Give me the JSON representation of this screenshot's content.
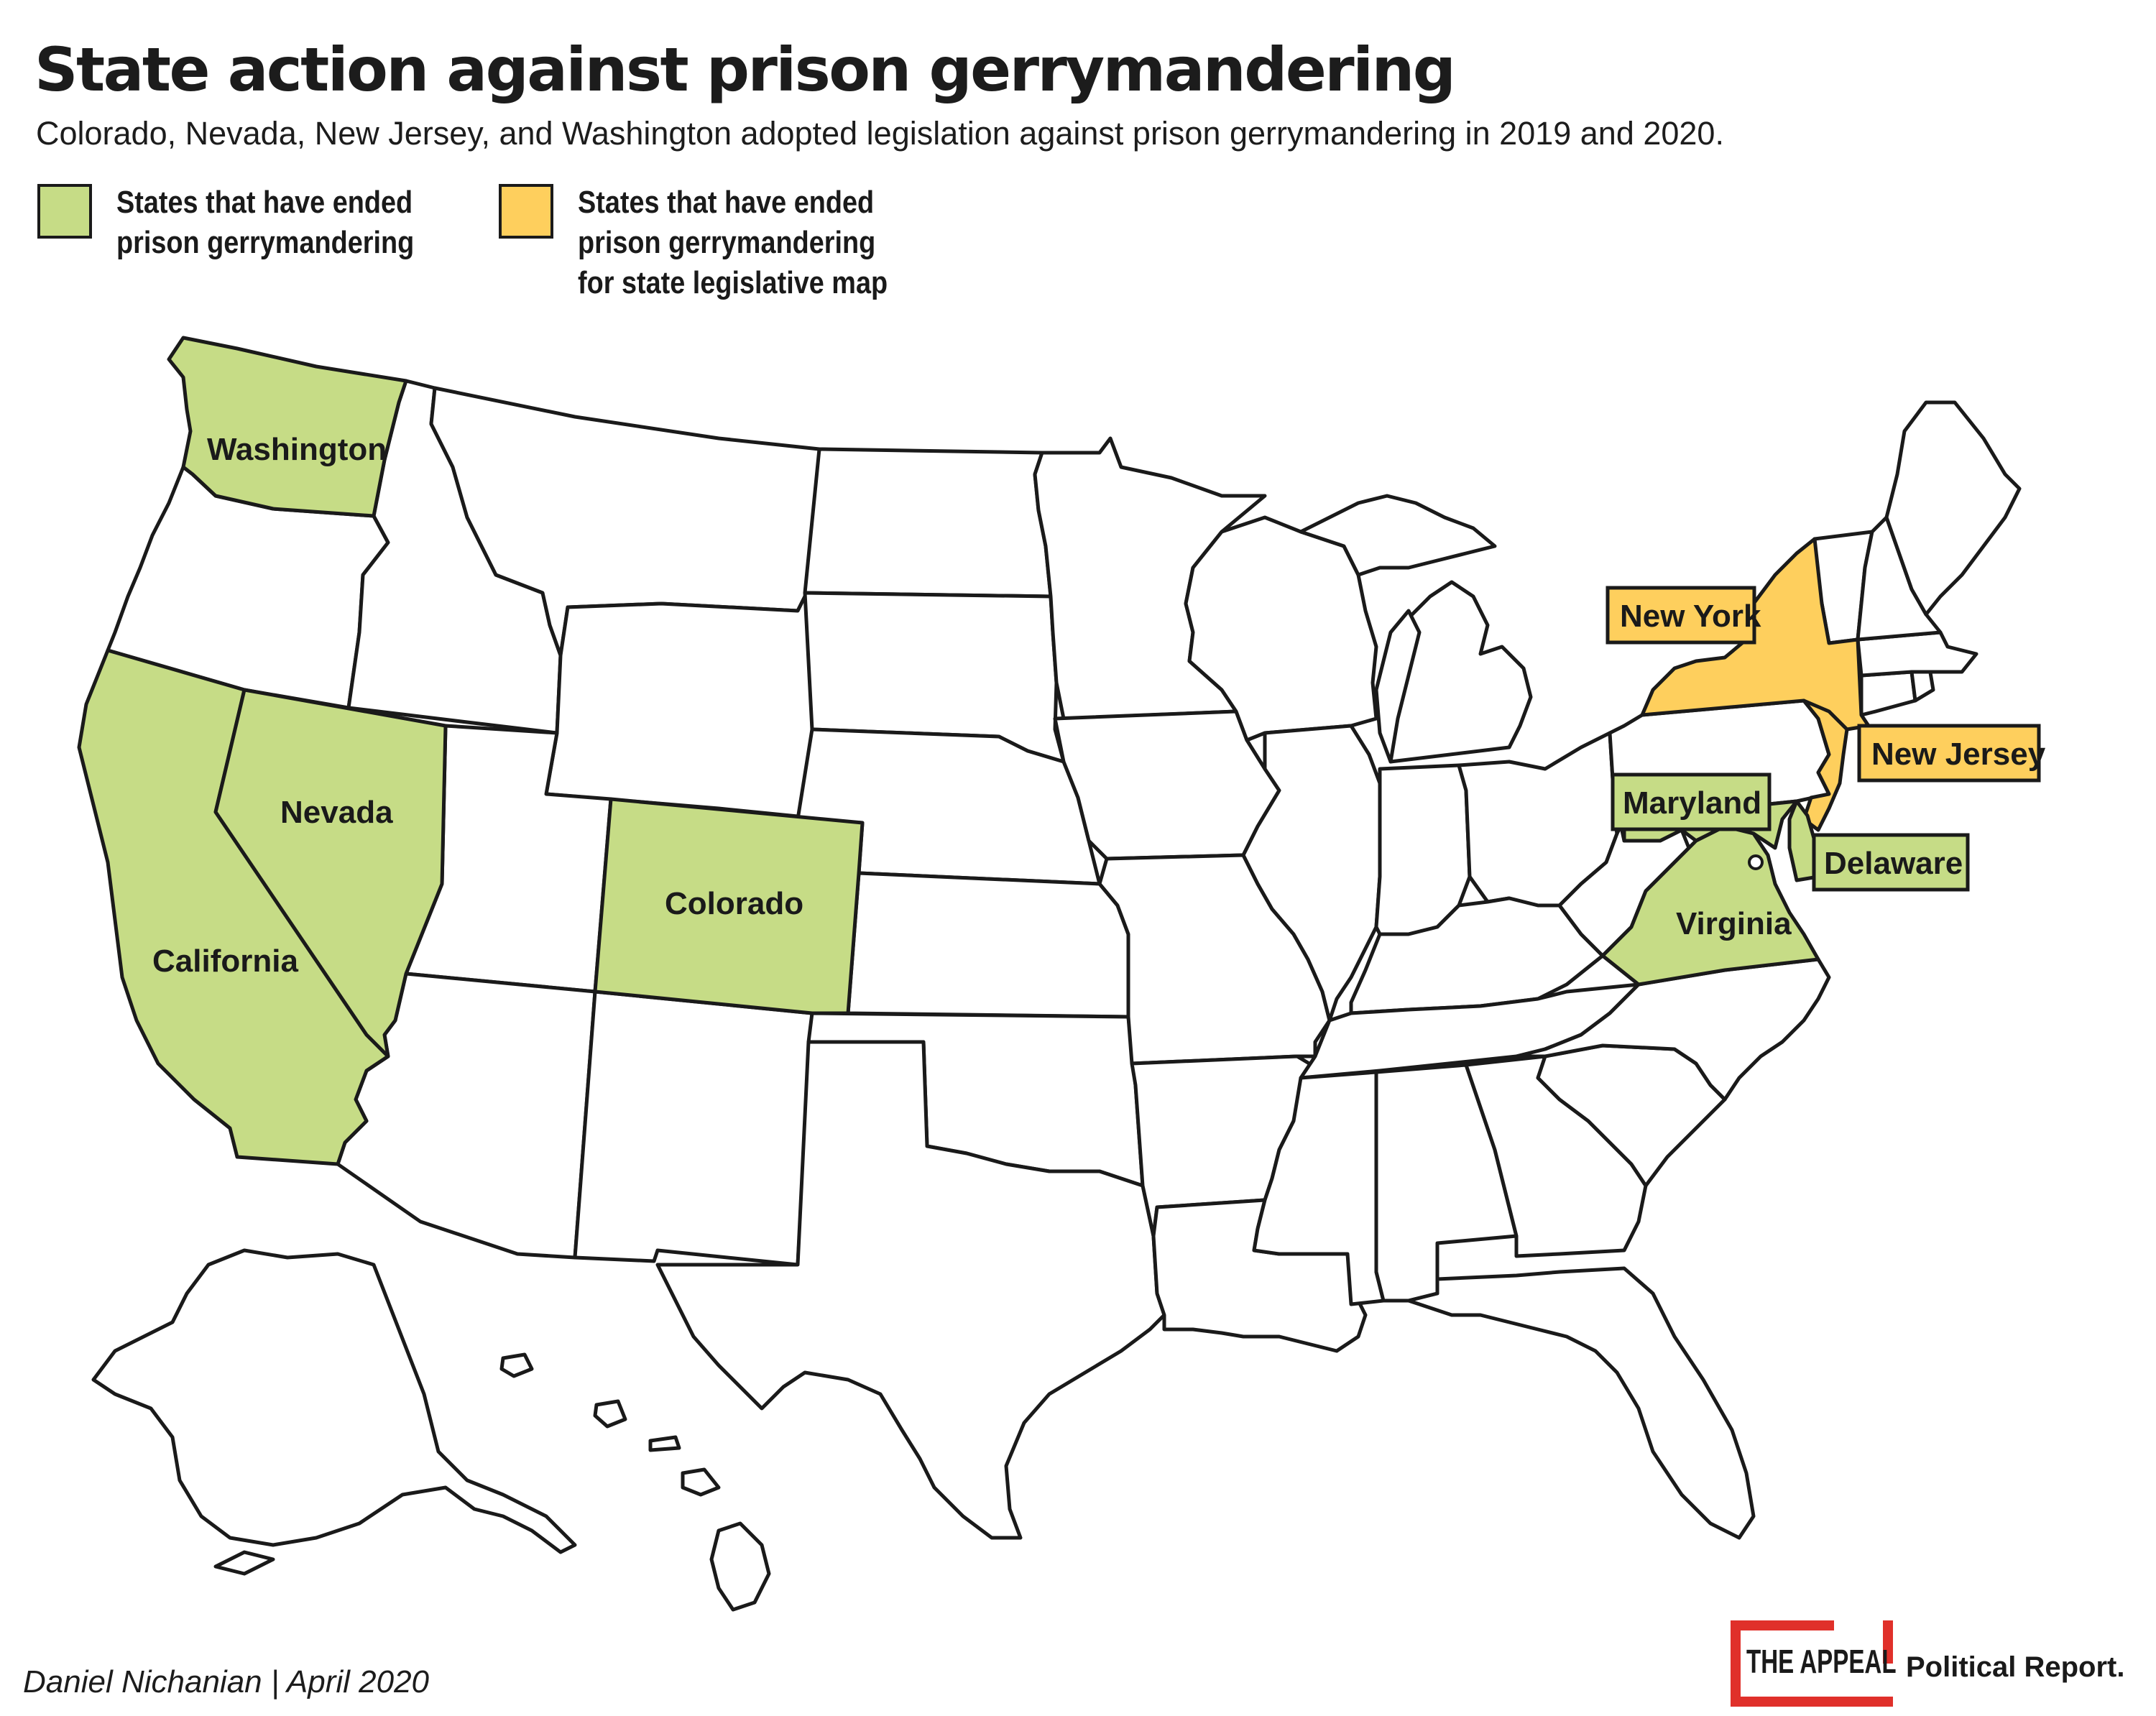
{
  "title": "State action against prison gerrymandering",
  "subtitle": "Colorado, Nevada, New Jersey, and Washington adopted legislation against prison gerrymandering in 2019 and 2020.",
  "colors": {
    "ended": "#c6dc86",
    "ended_state_legislative": "#fecf5d",
    "none": "#ffffff",
    "border": "#1a1a1a",
    "logo_red": "#e0302a"
  },
  "legend": {
    "ended": {
      "line1": "States that have ended",
      "line2": "prison gerrymandering"
    },
    "state_legislative": {
      "line1": "States that have ended",
      "line2": "prison gerrymandering",
      "line3": "for state legislative map"
    }
  },
  "states": {
    "washington": {
      "label": "Washington",
      "category": "ended"
    },
    "nevada": {
      "label": "Nevada",
      "category": "ended"
    },
    "california": {
      "label": "California",
      "category": "ended"
    },
    "colorado": {
      "label": "Colorado",
      "category": "ended"
    },
    "maryland": {
      "label": "Maryland",
      "category": "ended"
    },
    "virginia": {
      "label": "Virginia",
      "category": "ended"
    },
    "delaware": {
      "label": "Delaware",
      "category": "ended"
    },
    "new_york": {
      "label": "New York",
      "category": "ended_state_legislative"
    },
    "new_jersey": {
      "label": "New Jersey",
      "category": "ended_state_legislative"
    }
  },
  "credit": "Daniel Nichanian  |  April  2020",
  "logo": {
    "name": "THE APPEAL",
    "sub": "Political Report."
  }
}
